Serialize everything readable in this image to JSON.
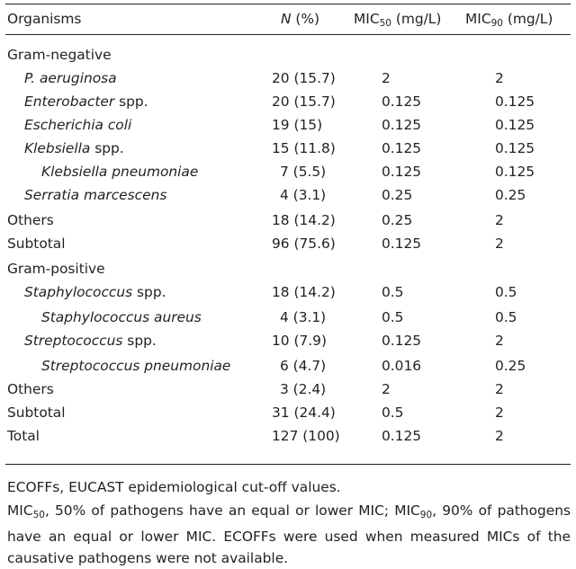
{
  "header": {
    "organisms": "Organisms",
    "n_label": "N",
    "n_pct": " (%)",
    "mic_prefix": "MIC",
    "mic50_sub": "50",
    "mic90_sub": "90",
    "mic_unit": " (mg/L)"
  },
  "rows": [
    {
      "org": "Gram-negative",
      "n": "",
      "mic50": "",
      "mic90": ""
    },
    {
      "org": "P. aeruginosa",
      "n": "20 (15.7)",
      "mic50": "2",
      "mic90": "2"
    },
    {
      "org_it": "Enterobacter",
      "org_tail": " spp.",
      "n": "20 (15.7)",
      "mic50": "0.125",
      "mic90": "0.125"
    },
    {
      "org": "Escherichia coli",
      "n": "19 (15)",
      "mic50": "0.125",
      "mic90": "0.125"
    },
    {
      "org_it": "Klebsiella",
      "org_tail": " spp.",
      "n": "15 (11.8)",
      "mic50": "0.125",
      "mic90": "0.125"
    },
    {
      "org": "Klebsiella pneumoniae",
      "n": "7 (5.5)",
      "mic50": "0.125",
      "mic90": "0.125"
    },
    {
      "org": "Serratia marcescens",
      "n": "4 (3.1)",
      "mic50": "0.25",
      "mic90": "0.25"
    },
    {
      "org": "Others",
      "n": "18 (14.2)",
      "mic50": "0.25",
      "mic90": "2"
    },
    {
      "org": "Subtotal",
      "n": "96 (75.6)",
      "mic50": "0.125",
      "mic90": "2"
    },
    {
      "org": "Gram-positive",
      "n": "",
      "mic50": "",
      "mic90": ""
    },
    {
      "org_it": "Staphylococcus",
      "org_tail": " spp.",
      "n": "18 (14.2)",
      "mic50": "0.5",
      "mic90": "0.5"
    },
    {
      "org": "Staphylococcus aureus",
      "n": "4 (3.1)",
      "mic50": "0.5",
      "mic90": "0.5"
    },
    {
      "org_it": "Streptococcus",
      "org_tail": " spp.",
      "n": "10 (7.9)",
      "mic50": "0.125",
      "mic90": "2"
    },
    {
      "org": "Streptococcus pneumoniae",
      "n": "6 (4.7)",
      "mic50": "0.016",
      "mic90": "0.25"
    },
    {
      "org": "Others",
      "n": "3 (2.4)",
      "mic50": "2",
      "mic90": "2"
    },
    {
      "org": "Subtotal",
      "n": "31 (24.4)",
      "mic50": "0.5",
      "mic90": "2"
    },
    {
      "org": "Total",
      "n": "127 (100)",
      "mic50": "0.125",
      "mic90": "2"
    }
  ],
  "footnotes": {
    "line1": "ECOFFs, EUCAST epidemiological cut-off values.",
    "mic_prefix": "MIC",
    "sub50": "50",
    "text_a": ", 50% of pathogens have an equal or lower MIC; ",
    "sub90": "90",
    "text_b": ", 90% of pathogens have an equal or lower MIC. ECOFFs were used when measured MICs of the causative pathogens were not available."
  }
}
